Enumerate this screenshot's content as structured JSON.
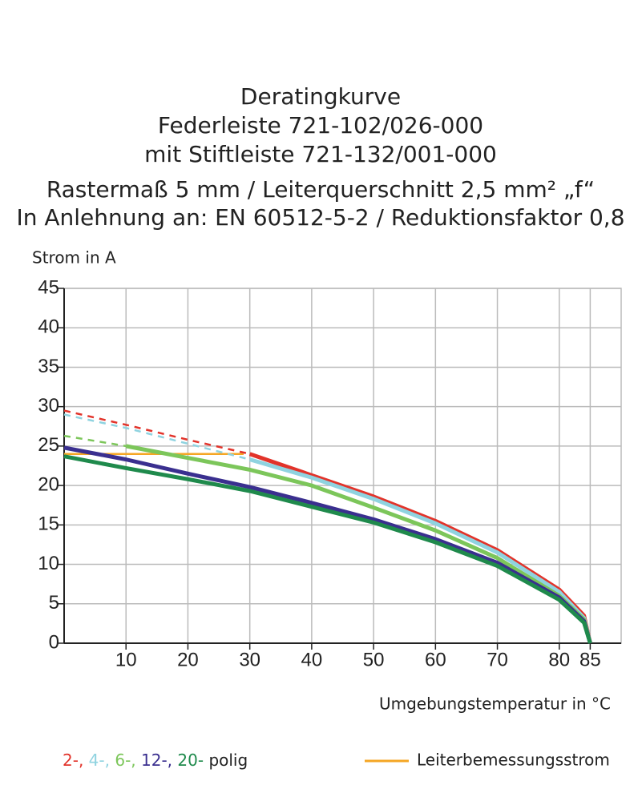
{
  "chart_data": {
    "type": "line",
    "title": [
      "Deratingkurve",
      "Federleiste 721-102/026-000",
      "mit Stiftleiste 721-132/001-000",
      "Rastermaß 5 mm / Leiterquerschnitt 2,5 mm² „f“",
      "In Anlehnung an: EN 60512-5-2 / Reduktionsfaktor 0,8"
    ],
    "y_label": "Strom in A",
    "x_label": "Umgebungstemperatur in °C",
    "x": [
      0,
      10,
      20,
      30,
      40,
      50,
      60,
      70,
      80,
      84,
      85
    ],
    "series": [
      {
        "name": "2-,",
        "color": "#e2332a",
        "dashed_until": 30,
        "values": [
          29.5,
          27.7,
          25.8,
          24,
          21.3,
          18.6,
          15.5,
          11.8,
          6.8,
          3.5,
          0
        ]
      },
      {
        "name": "4-,",
        "color": "#8fd3e0",
        "dashed_until": 30,
        "values": [
          29,
          27.3,
          25.3,
          23.3,
          21,
          18.3,
          15.2,
          11.5,
          6.5,
          3.2,
          0
        ]
      },
      {
        "name": "6-,",
        "color": "#7cc65a",
        "dashed_until": 10,
        "values": [
          26.3,
          25,
          23.5,
          22,
          20,
          17.2,
          14.3,
          10.8,
          6,
          3,
          0
        ]
      },
      {
        "name": "12-,",
        "color": "#3a2f8f",
        "dashed_until": 0,
        "values": [
          24.8,
          23.3,
          21.5,
          19.8,
          17.8,
          15.7,
          13.2,
          10.2,
          5.8,
          2.8,
          0
        ]
      },
      {
        "name": "20-",
        "color": "#1f8a4c",
        "dashed_until": 0,
        "values": [
          23.7,
          22.2,
          20.8,
          19.3,
          17.3,
          15.3,
          12.8,
          9.8,
          5.5,
          2.6,
          0
        ]
      }
    ],
    "legend_suffix": "polig",
    "reference_line": {
      "name": "Leiterbemessungsstrom",
      "color": "#f5a623",
      "x": [
        0,
        29
      ],
      "values": [
        24,
        24
      ]
    },
    "xlim": [
      0,
      90
    ],
    "ylim": [
      0,
      45
    ],
    "xticks": [
      10,
      20,
      30,
      40,
      50,
      60,
      70,
      80,
      85
    ],
    "yticks": [
      0,
      5,
      10,
      15,
      20,
      25,
      30,
      35,
      40,
      45
    ],
    "grid": true
  }
}
